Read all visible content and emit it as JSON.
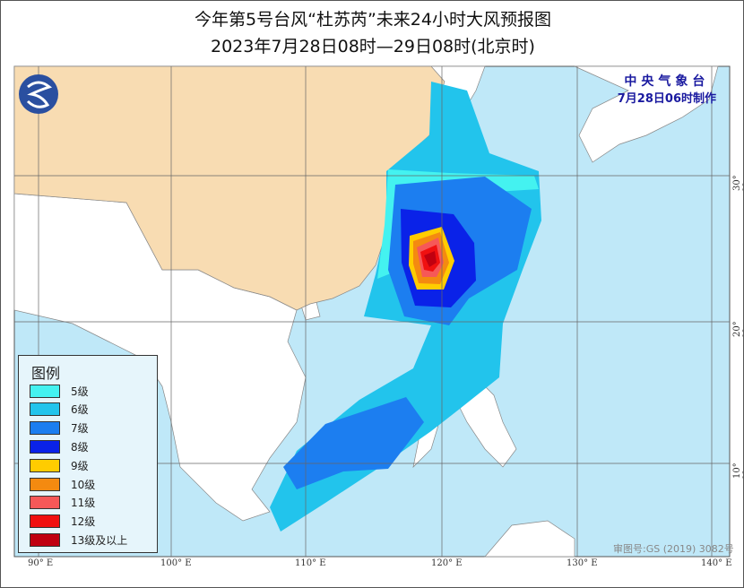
{
  "title": "今年第5号台风“杜苏芮”未来24小时大风预报图",
  "subtitle": "2023年7月28日08时—29日08时(北京时)",
  "agency": {
    "name": "中央气象台",
    "issued": "7月28日06时制作"
  },
  "logo": "cma-logo",
  "legend": {
    "title": "图例",
    "items": [
      {
        "label": "5级",
        "color": "#44f2f0"
      },
      {
        "label": "6级",
        "color": "#22c4ec"
      },
      {
        "label": "7级",
        "color": "#1c7ef0"
      },
      {
        "label": "8级",
        "color": "#0a22e8"
      },
      {
        "label": "9级",
        "color": "#ffcc00"
      },
      {
        "label": "10级",
        "color": "#f48a10"
      },
      {
        "label": "11级",
        "color": "#f65858"
      },
      {
        "label": "12级",
        "color": "#f01010"
      },
      {
        "label": "13级及以上",
        "color": "#c00010"
      }
    ]
  },
  "lon_ticks": [
    "90° E",
    "100° E",
    "110° E",
    "120° E",
    "130° E",
    "140° E"
  ],
  "lat_ticks": [
    "30° N",
    "20° N",
    "10° N"
  ],
  "approval": "审图号:GS (2019) 3082号",
  "colors": {
    "sea": "#bfe8f8",
    "china": "#f8dcb2",
    "land": "#ffffff"
  }
}
